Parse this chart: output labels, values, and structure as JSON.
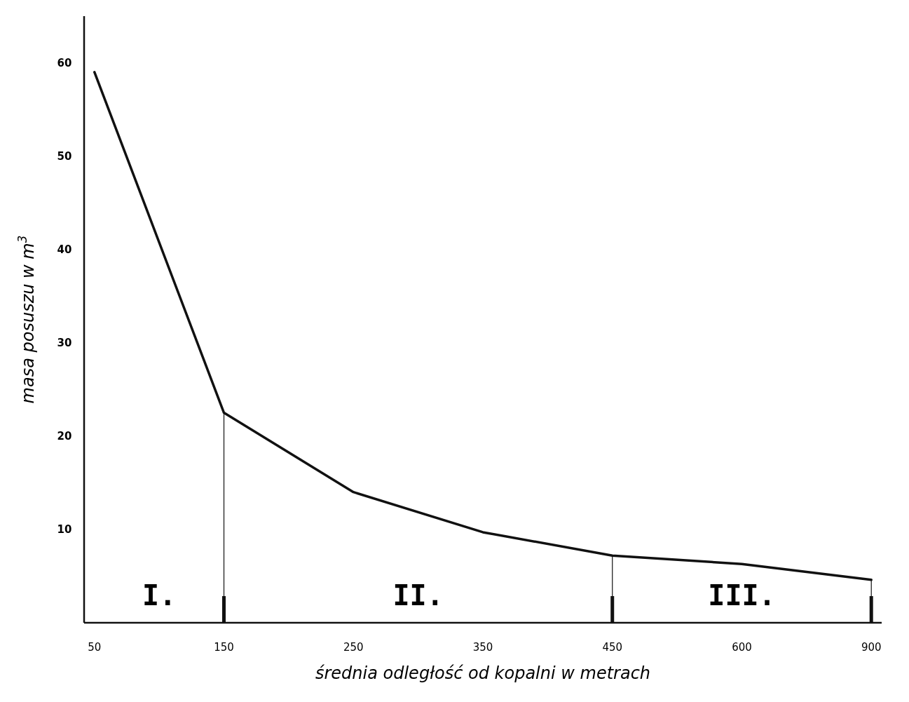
{
  "chart_data": {
    "type": "line",
    "xlabel": "średnia odległość od kopalni w metrach",
    "ylabel": "masa posuszu w m$^{3}$",
    "categories": [
      "50",
      "150",
      "250",
      "350",
      "450",
      "600",
      "900"
    ],
    "series": [
      {
        "color": "#111111",
        "values": [
          59,
          22.5,
          14,
          9.7,
          7.2,
          6.3,
          4.6
        ]
      }
    ],
    "ylim": [
      0,
      65
    ],
    "yticks": [
      10,
      20,
      30,
      40,
      50,
      60
    ],
    "grid": false,
    "marker": "none",
    "line_style": "solid",
    "ref_lines": [
      {
        "axis": "x",
        "value": "150",
        "color": "#111111"
      },
      {
        "axis": "x",
        "value": "450",
        "color": "#111111"
      }
    ],
    "annotations": [
      "I.",
      "II.",
      "III."
    ]
  }
}
